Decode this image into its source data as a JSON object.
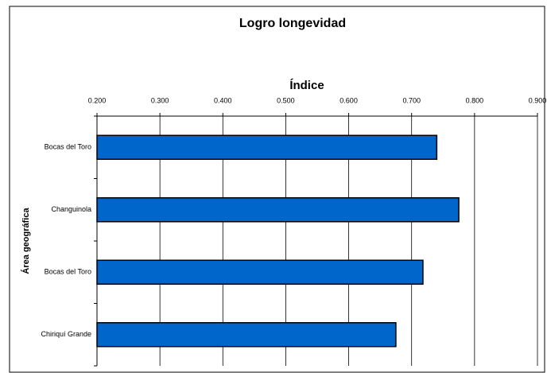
{
  "chart_data": {
    "type": "hbar",
    "title": "Logro longevidad",
    "x_label": "Índice",
    "y_label": "Área geográfica",
    "categories": [
      "Bocas del Toro",
      "Changuinola",
      "Bocas del Toro",
      "Chiriquí Grande"
    ],
    "values": [
      0.74,
      0.775,
      0.718,
      0.675
    ],
    "color": "#0066cc",
    "xlim": [
      0.2,
      0.9
    ],
    "xticks": [
      {
        "value": 0.2,
        "label": "0.200"
      },
      {
        "value": 0.3,
        "label": "0.300"
      },
      {
        "value": 0.4,
        "label": "0.400"
      },
      {
        "value": 0.5,
        "label": "0.500"
      },
      {
        "value": 0.6,
        "label": "0.600"
      },
      {
        "value": 0.7,
        "label": "0.700"
      },
      {
        "value": 0.8,
        "label": "0.800"
      },
      {
        "value": 0.9,
        "label": "0.900"
      }
    ],
    "grid": true
  }
}
